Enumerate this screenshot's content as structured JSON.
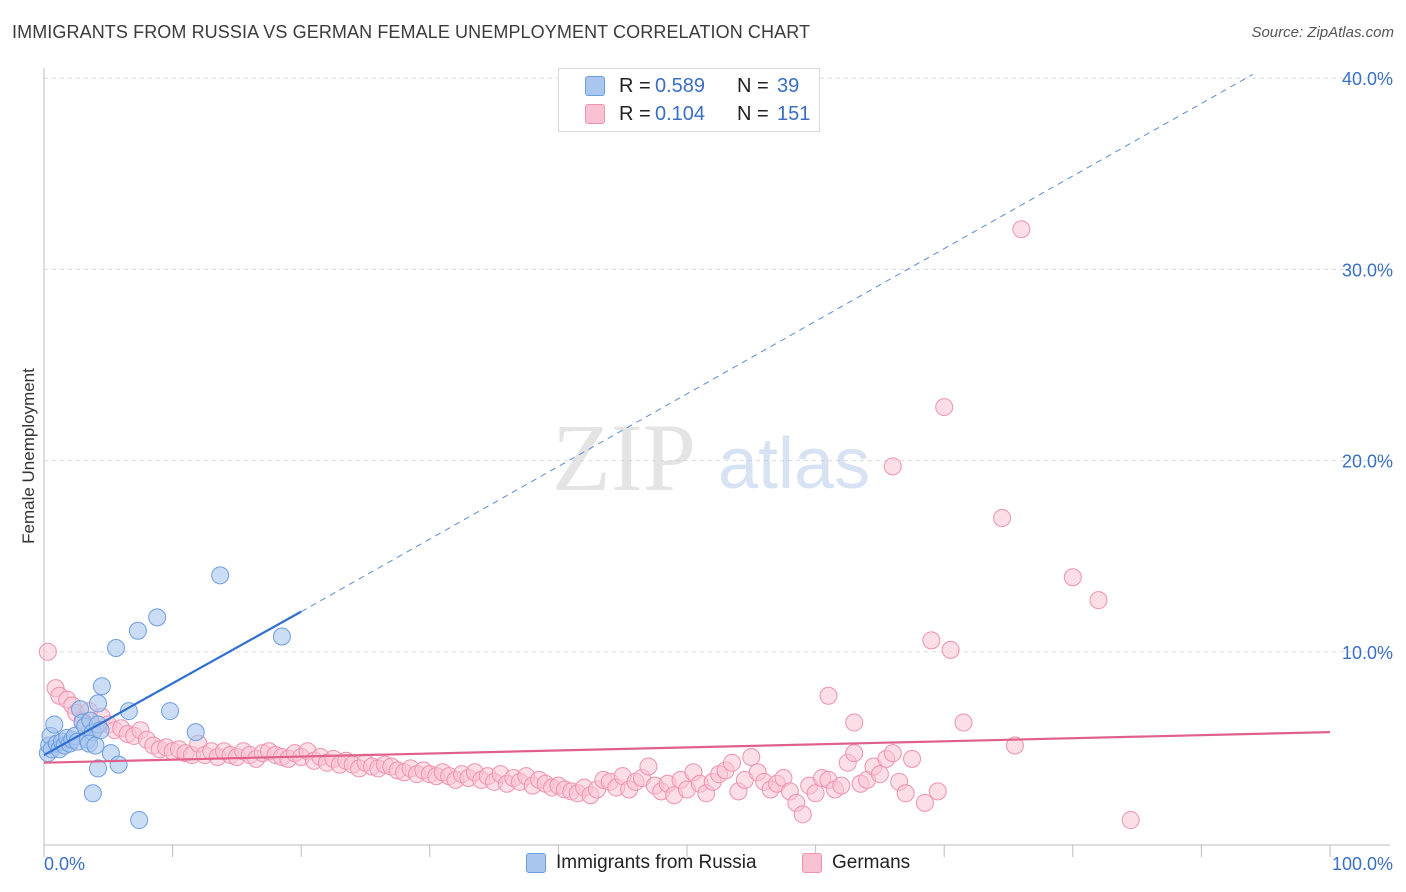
{
  "title": "IMMIGRANTS FROM RUSSIA VS GERMAN FEMALE UNEMPLOYMENT CORRELATION CHART",
  "source": "Source: ZipAtlas.com",
  "watermark": {
    "zip": "ZIP",
    "atlas": "atlas"
  },
  "legend": {
    "rows": [
      {
        "r_label": "R =",
        "r_value": "0.589",
        "n_label": "N =",
        "n_value": "39",
        "color": "#a9c6ee",
        "border": "#6d9de0"
      },
      {
        "r_label": "R =",
        "r_value": "0.104",
        "n_label": "N =",
        "n_value": "151",
        "color": "#f9c2d2",
        "border": "#ee92ad"
      }
    ]
  },
  "bottom_legend": [
    {
      "label": "Immigrants from Russia",
      "color": "#a9c6ee",
      "border": "#6d9de0"
    },
    {
      "label": "Germans",
      "color": "#f9c2d2",
      "border": "#ee92ad"
    }
  ],
  "chart_data": {
    "type": "scatter",
    "title": "IMMIGRANTS FROM RUSSIA VS GERMAN FEMALE UNEMPLOYMENT CORRELATION CHART",
    "xlabel": "",
    "ylabel": "Female Unemployment",
    "xlim": [
      0,
      100
    ],
    "ylim": [
      0,
      42
    ],
    "x_tick_labels": [
      "0.0%",
      "100.0%"
    ],
    "y_ticks": [
      10,
      20,
      30,
      40
    ],
    "y_tick_labels": [
      "10.0%",
      "20.0%",
      "30.0%",
      "40.0%"
    ],
    "grid": true,
    "legend_position": "top-center",
    "series": [
      {
        "name": "Immigrants from Russia",
        "color": "#a9c6ee",
        "stroke": "#6d9de0",
        "line_color": "#2f6fcf",
        "trend_solid": [
          [
            0,
            4.6
          ],
          [
            20,
            12.1
          ]
        ],
        "trend_dashed": [
          [
            20,
            12.1
          ],
          [
            94,
            40.2
          ]
        ],
        "points": [
          [
            0.3,
            4.7
          ],
          [
            0.4,
            5.1
          ],
          [
            0.5,
            5.6
          ],
          [
            0.6,
            4.9
          ],
          [
            0.8,
            6.2
          ],
          [
            1.0,
            5.2
          ],
          [
            1.2,
            4.9
          ],
          [
            1.4,
            5.3
          ],
          [
            1.6,
            5.1
          ],
          [
            1.8,
            5.5
          ],
          [
            2.0,
            5.2
          ],
          [
            2.2,
            5.4
          ],
          [
            2.4,
            5.6
          ],
          [
            2.6,
            5.3
          ],
          [
            2.8,
            7.0
          ],
          [
            3.0,
            6.3
          ],
          [
            3.2,
            6.1
          ],
          [
            3.4,
            5.4
          ],
          [
            3.6,
            6.4
          ],
          [
            3.8,
            5.8
          ],
          [
            3.5,
            5.2
          ],
          [
            4.0,
            5.1
          ],
          [
            4.2,
            6.2
          ],
          [
            4.4,
            5.9
          ],
          [
            4.2,
            3.9
          ],
          [
            3.8,
            2.6
          ],
          [
            4.2,
            7.3
          ],
          [
            4.5,
            8.2
          ],
          [
            5.2,
            4.7
          ],
          [
            5.6,
            10.2
          ],
          [
            5.8,
            4.1
          ],
          [
            6.6,
            6.9
          ],
          [
            7.4,
            1.2
          ],
          [
            7.3,
            11.1
          ],
          [
            8.8,
            11.8
          ],
          [
            9.8,
            6.9
          ],
          [
            11.8,
            5.8
          ],
          [
            13.7,
            14.0
          ],
          [
            18.5,
            10.8
          ]
        ]
      },
      {
        "name": "Germans",
        "color": "#f9c2d2",
        "stroke": "#ee92ad",
        "line_color": "#e0608a",
        "trend_solid": [
          [
            0,
            4.2
          ],
          [
            100,
            5.8
          ]
        ],
        "points": [
          [
            0.3,
            10.0
          ],
          [
            0.9,
            8.1
          ],
          [
            1.2,
            7.7
          ],
          [
            1.8,
            7.5
          ],
          [
            2.2,
            7.2
          ],
          [
            2.5,
            6.8
          ],
          [
            3.0,
            6.4
          ],
          [
            3.5,
            6.9
          ],
          [
            4.0,
            6.0
          ],
          [
            4.5,
            6.6
          ],
          [
            5.0,
            6.2
          ],
          [
            5.5,
            5.9
          ],
          [
            6.0,
            6.0
          ],
          [
            6.5,
            5.7
          ],
          [
            7.0,
            5.6
          ],
          [
            7.5,
            5.9
          ],
          [
            8.0,
            5.4
          ],
          [
            8.5,
            5.1
          ],
          [
            9.0,
            4.9
          ],
          [
            9.5,
            5.0
          ],
          [
            10.0,
            4.8
          ],
          [
            10.5,
            4.9
          ],
          [
            11.0,
            4.7
          ],
          [
            11.5,
            4.6
          ],
          [
            12.0,
            5.2
          ],
          [
            12.5,
            4.6
          ],
          [
            13.0,
            4.8
          ],
          [
            13.5,
            4.5
          ],
          [
            14.0,
            4.8
          ],
          [
            14.5,
            4.6
          ],
          [
            15.0,
            4.5
          ],
          [
            15.5,
            4.8
          ],
          [
            16.0,
            4.6
          ],
          [
            16.5,
            4.4
          ],
          [
            17.0,
            4.7
          ],
          [
            17.5,
            4.8
          ],
          [
            18.0,
            4.6
          ],
          [
            18.5,
            4.5
          ],
          [
            19.0,
            4.4
          ],
          [
            19.5,
            4.7
          ],
          [
            20.0,
            4.5
          ],
          [
            20.5,
            4.8
          ],
          [
            21.0,
            4.3
          ],
          [
            21.5,
            4.5
          ],
          [
            22.0,
            4.2
          ],
          [
            22.5,
            4.4
          ],
          [
            23.0,
            4.1
          ],
          [
            23.5,
            4.3
          ],
          [
            24.0,
            4.1
          ],
          [
            24.5,
            3.9
          ],
          [
            25.0,
            4.2
          ],
          [
            25.5,
            4.0
          ],
          [
            26.0,
            3.9
          ],
          [
            26.5,
            4.1
          ],
          [
            27.0,
            4.0
          ],
          [
            27.5,
            3.8
          ],
          [
            28.0,
            3.7
          ],
          [
            28.5,
            3.9
          ],
          [
            29.0,
            3.6
          ],
          [
            29.5,
            3.8
          ],
          [
            30.0,
            3.6
          ],
          [
            30.5,
            3.5
          ],
          [
            31.0,
            3.7
          ],
          [
            31.5,
            3.5
          ],
          [
            32.0,
            3.3
          ],
          [
            32.5,
            3.6
          ],
          [
            33.0,
            3.4
          ],
          [
            33.5,
            3.7
          ],
          [
            34.0,
            3.3
          ],
          [
            34.5,
            3.5
          ],
          [
            35.0,
            3.2
          ],
          [
            35.5,
            3.6
          ],
          [
            36.0,
            3.1
          ],
          [
            36.5,
            3.4
          ],
          [
            37.0,
            3.2
          ],
          [
            37.5,
            3.5
          ],
          [
            38.0,
            3.0
          ],
          [
            38.5,
            3.3
          ],
          [
            39.0,
            3.1
          ],
          [
            39.5,
            2.9
          ],
          [
            40.0,
            3.0
          ],
          [
            40.5,
            2.8
          ],
          [
            41.0,
            2.7
          ],
          [
            41.5,
            2.6
          ],
          [
            42.0,
            2.9
          ],
          [
            42.5,
            2.5
          ],
          [
            43.0,
            2.8
          ],
          [
            43.5,
            3.3
          ],
          [
            44.0,
            3.2
          ],
          [
            44.5,
            2.9
          ],
          [
            45.0,
            3.5
          ],
          [
            45.5,
            2.8
          ],
          [
            46.0,
            3.2
          ],
          [
            46.5,
            3.4
          ],
          [
            47.0,
            4.0
          ],
          [
            47.5,
            3.0
          ],
          [
            48.0,
            2.7
          ],
          [
            48.5,
            3.1
          ],
          [
            49.0,
            2.5
          ],
          [
            49.5,
            3.3
          ],
          [
            50.0,
            2.8
          ],
          [
            50.5,
            3.7
          ],
          [
            51.0,
            3.1
          ],
          [
            51.5,
            2.6
          ],
          [
            52.0,
            3.2
          ],
          [
            52.5,
            3.6
          ],
          [
            53.0,
            3.8
          ],
          [
            53.5,
            4.2
          ],
          [
            54.0,
            2.7
          ],
          [
            54.5,
            3.3
          ],
          [
            55.0,
            4.5
          ],
          [
            55.5,
            3.7
          ],
          [
            56.0,
            3.2
          ],
          [
            56.5,
            2.8
          ],
          [
            57.0,
            3.1
          ],
          [
            57.5,
            3.4
          ],
          [
            58.0,
            2.7
          ],
          [
            58.5,
            2.1
          ],
          [
            59.0,
            1.5
          ],
          [
            59.5,
            3.0
          ],
          [
            60.0,
            2.6
          ],
          [
            60.5,
            3.4
          ],
          [
            61.0,
            3.3
          ],
          [
            61.5,
            2.8
          ],
          [
            62.0,
            3.0
          ],
          [
            62.5,
            4.2
          ],
          [
            63.0,
            4.7
          ],
          [
            63.5,
            3.1
          ],
          [
            64.0,
            3.3
          ],
          [
            64.5,
            4.0
          ],
          [
            65.0,
            3.6
          ],
          [
            65.5,
            4.4
          ],
          [
            66.0,
            4.7
          ],
          [
            66.5,
            3.2
          ],
          [
            67.0,
            2.6
          ],
          [
            67.5,
            4.4
          ],
          [
            68.5,
            2.1
          ],
          [
            69.5,
            2.7
          ],
          [
            61.0,
            7.7
          ],
          [
            63.0,
            6.3
          ],
          [
            66.0,
            19.7
          ],
          [
            69.0,
            10.6
          ],
          [
            70.5,
            10.1
          ],
          [
            70.0,
            22.8
          ],
          [
            71.5,
            6.3
          ],
          [
            74.5,
            17.0
          ],
          [
            75.5,
            5.1
          ],
          [
            76.0,
            32.1
          ],
          [
            80.0,
            13.9
          ],
          [
            82.0,
            12.7
          ],
          [
            84.5,
            1.2
          ]
        ]
      }
    ]
  }
}
